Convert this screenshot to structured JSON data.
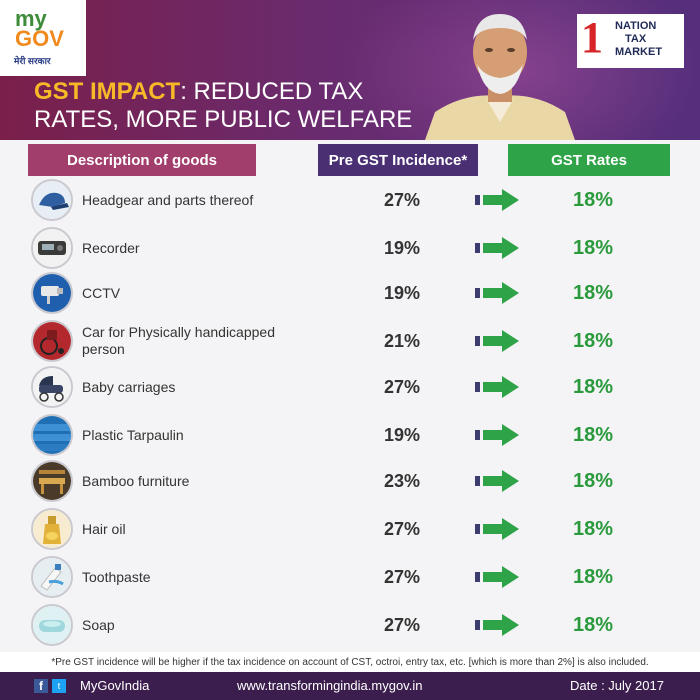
{
  "header": {
    "logo_left": {
      "my": "my",
      "gov": "GOV",
      "tagline": "मेरी सरकार"
    },
    "title_highlight": "GST IMPACT",
    "title_line1_rest": ": REDUCED TAX",
    "title_line2": "RATES, MORE PUBLIC WELFARE",
    "logo_right": {
      "numeral": "1",
      "line1": "NATION",
      "line2": "TAX",
      "line3": "MARKET"
    }
  },
  "table": {
    "col_desc": "Description of goods",
    "col_pre": "Pre GST Incidence*",
    "col_gst": "GST Rates",
    "rows": [
      {
        "good": "Headgear and parts thereof",
        "pre": "27%",
        "gst": "18%",
        "icon": "cap-icon"
      },
      {
        "good": "Recorder",
        "pre": "19%",
        "gst": "18%",
        "icon": "recorder-icon"
      },
      {
        "good": "CCTV",
        "pre": "19%",
        "gst": "18%",
        "icon": "cctv-icon"
      },
      {
        "good": "Car for Physically handicapped person",
        "pre": "21%",
        "gst": "18%",
        "icon": "wheelchair-icon"
      },
      {
        "good": "Baby carriages",
        "pre": "27%",
        "gst": "18%",
        "icon": "pram-icon"
      },
      {
        "good": "Plastic Tarpaulin",
        "pre": "19%",
        "gst": "18%",
        "icon": "tarpaulin-icon"
      },
      {
        "good": "Bamboo furniture",
        "pre": "23%",
        "gst": "18%",
        "icon": "bamboo-furniture-icon"
      },
      {
        "good": "Hair oil",
        "pre": "27%",
        "gst": "18%",
        "icon": "hair-oil-icon"
      },
      {
        "good": "Toothpaste",
        "pre": "27%",
        "gst": "18%",
        "icon": "toothpaste-icon"
      },
      {
        "good": "Soap",
        "pre": "27%",
        "gst": "18%",
        "icon": "soap-icon"
      }
    ]
  },
  "footnote": "*Pre GST incidence will be higher if the tax incidence on account of CST, octroi, entry tax, etc. [which is more than 2%] is also included.",
  "footer": {
    "facebook_glyph": "f",
    "twitter_glyph": "t",
    "handle": "MyGovIndia",
    "website": "www.transformingindia.mygov.in",
    "date": "Date : July 2017"
  },
  "colors": {
    "header_bg": "#6a2b6e",
    "title_highlight": "#f7b928",
    "desc_header": "#a23e6c",
    "pre_header": "#4b2f73",
    "gst_header": "#2fa347",
    "gst_text": "#2a9a3c",
    "footer_bg": "#3b1e4e"
  }
}
